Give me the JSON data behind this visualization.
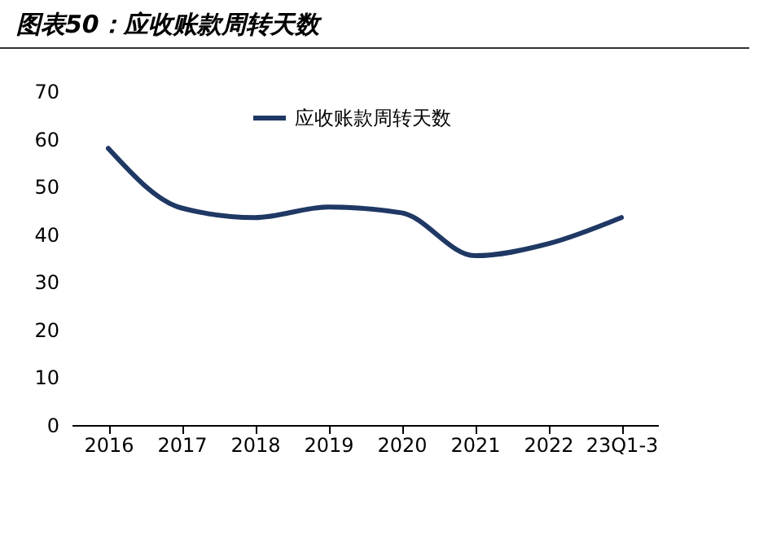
{
  "chart_data": {
    "type": "line",
    "title": "图表50：应收账款周转天数",
    "categories": [
      "2016",
      "2017",
      "2018",
      "2019",
      "2020",
      "2021",
      "2022",
      "23Q1-3"
    ],
    "series": [
      {
        "name": "应收账款周转天数",
        "color": "#1f3864",
        "values": [
          58,
          45.5,
          43.5,
          45.7,
          44.5,
          35.5,
          38,
          43.5
        ]
      }
    ],
    "ylim": [
      0,
      70
    ],
    "yticks": [
      0,
      10,
      20,
      30,
      40,
      50,
      60,
      70
    ],
    "grid": false,
    "legend": "top",
    "marker": "none",
    "line_style": "solid"
  }
}
